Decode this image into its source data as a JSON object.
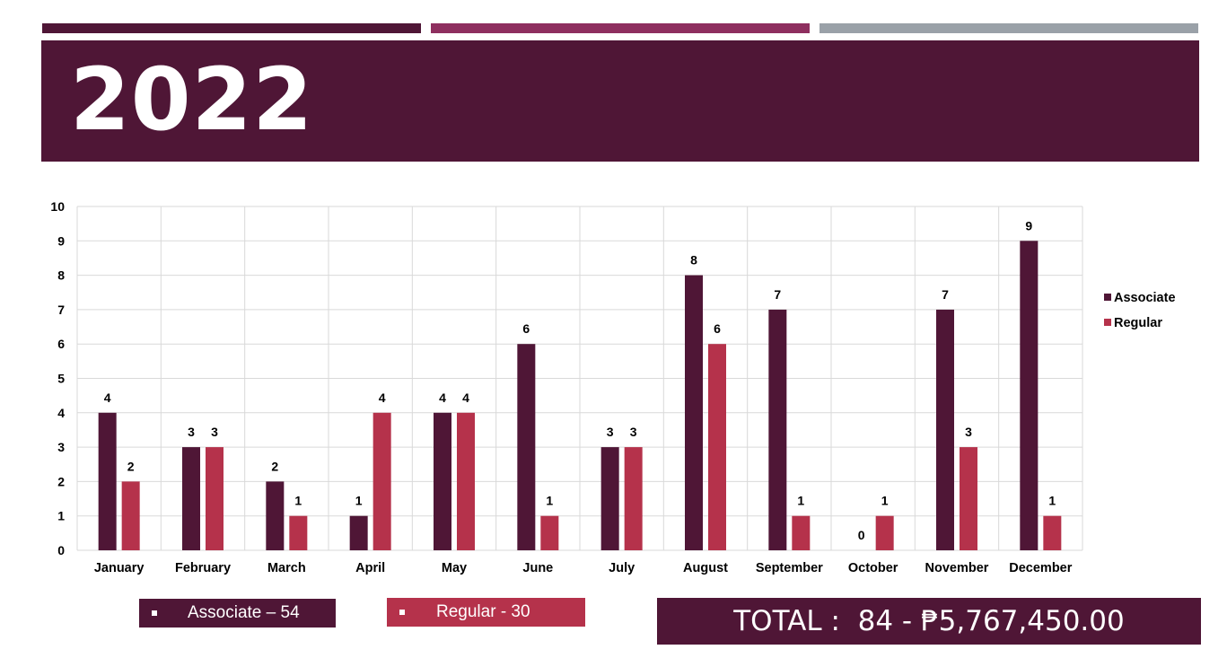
{
  "header": {
    "year": "2022"
  },
  "chart_data": {
    "type": "bar",
    "categories": [
      "January",
      "February",
      "March",
      "April",
      "May",
      "June",
      "July",
      "August",
      "September",
      "October",
      "November",
      "December"
    ],
    "series": [
      {
        "name": "Associate",
        "color": "#4f1636",
        "values": [
          4,
          3,
          2,
          1,
          4,
          6,
          3,
          8,
          7,
          0,
          7,
          9
        ]
      },
      {
        "name": "Regular",
        "color": "#b5324b",
        "values": [
          2,
          3,
          1,
          4,
          4,
          1,
          3,
          6,
          1,
          1,
          3,
          1
        ]
      }
    ],
    "ylim": [
      0,
      10
    ],
    "yticks": [
      0,
      1,
      2,
      3,
      4,
      5,
      6,
      7,
      8,
      9,
      10
    ],
    "grid": true,
    "legend": "right",
    "title": "",
    "xlabel": "",
    "ylabel": ""
  },
  "summary": {
    "associate_label": "Associate – 54",
    "regular_label": "Regular - 30",
    "total_label": "TOTAL :  84 - ₱5,767,450.00"
  },
  "colors": {
    "primary": "#4f1636",
    "accent": "#8e2f5f",
    "regular": "#b5324b",
    "gray": "#9aa1a8"
  }
}
